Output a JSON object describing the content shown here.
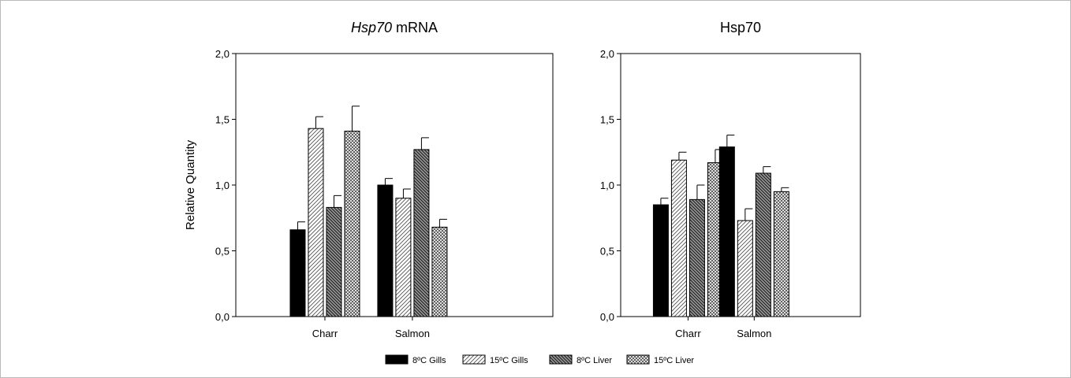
{
  "chart_data": [
    {
      "type": "bar",
      "title": "mRNA",
      "title_italic": "Hsp70",
      "ylabel": "Relative Quantity",
      "ylim": [
        0,
        2.0
      ],
      "yticks": [
        "0,0",
        "0,5",
        "1,0",
        "1,5",
        "2,0"
      ],
      "categories": [
        "Charr",
        "Salmon"
      ],
      "series": [
        {
          "name": "8ºC Gills",
          "values": [
            0.66,
            1.0
          ],
          "errors": [
            0.06,
            0.05
          ],
          "pattern": "solid"
        },
        {
          "name": "15ºC Gills",
          "values": [
            1.43,
            0.9
          ],
          "errors": [
            0.09,
            0.07
          ],
          "pattern": "hatch-light"
        },
        {
          "name": "8ºC Liver",
          "values": [
            0.83,
            1.27
          ],
          "errors": [
            0.09,
            0.09
          ],
          "pattern": "hatch-dark"
        },
        {
          "name": "15ºC Liver",
          "values": [
            1.41,
            0.68
          ],
          "errors": [
            0.19,
            0.06
          ],
          "pattern": "crosshatch"
        }
      ]
    },
    {
      "type": "bar",
      "title": "Hsp70",
      "title_italic": "",
      "ylabel": "",
      "ylim": [
        0,
        2.0
      ],
      "yticks": [
        "0,0",
        "0,5",
        "1,0",
        "1,5",
        "2,0"
      ],
      "categories": [
        "Charr",
        "Salmon"
      ],
      "series": [
        {
          "name": "8ºC Gills",
          "values": [
            0.85,
            1.29
          ],
          "errors": [
            0.05,
            0.09
          ],
          "pattern": "solid"
        },
        {
          "name": "15ºC Gills",
          "values": [
            1.19,
            0.73
          ],
          "errors": [
            0.06,
            0.09
          ],
          "pattern": "hatch-light"
        },
        {
          "name": "8ºC Liver",
          "values": [
            0.89,
            1.09
          ],
          "errors": [
            0.11,
            0.05
          ],
          "pattern": "hatch-dark"
        },
        {
          "name": "15ºC Liver",
          "values": [
            1.17,
            0.95
          ],
          "errors": [
            0.1,
            0.03
          ],
          "pattern": "crosshatch"
        }
      ]
    }
  ],
  "legend": {
    "placement": "bottom-center",
    "items": [
      "8ºC Gills",
      "15ºC Gills",
      "8ºC Liver",
      "15ºC Liver"
    ]
  }
}
